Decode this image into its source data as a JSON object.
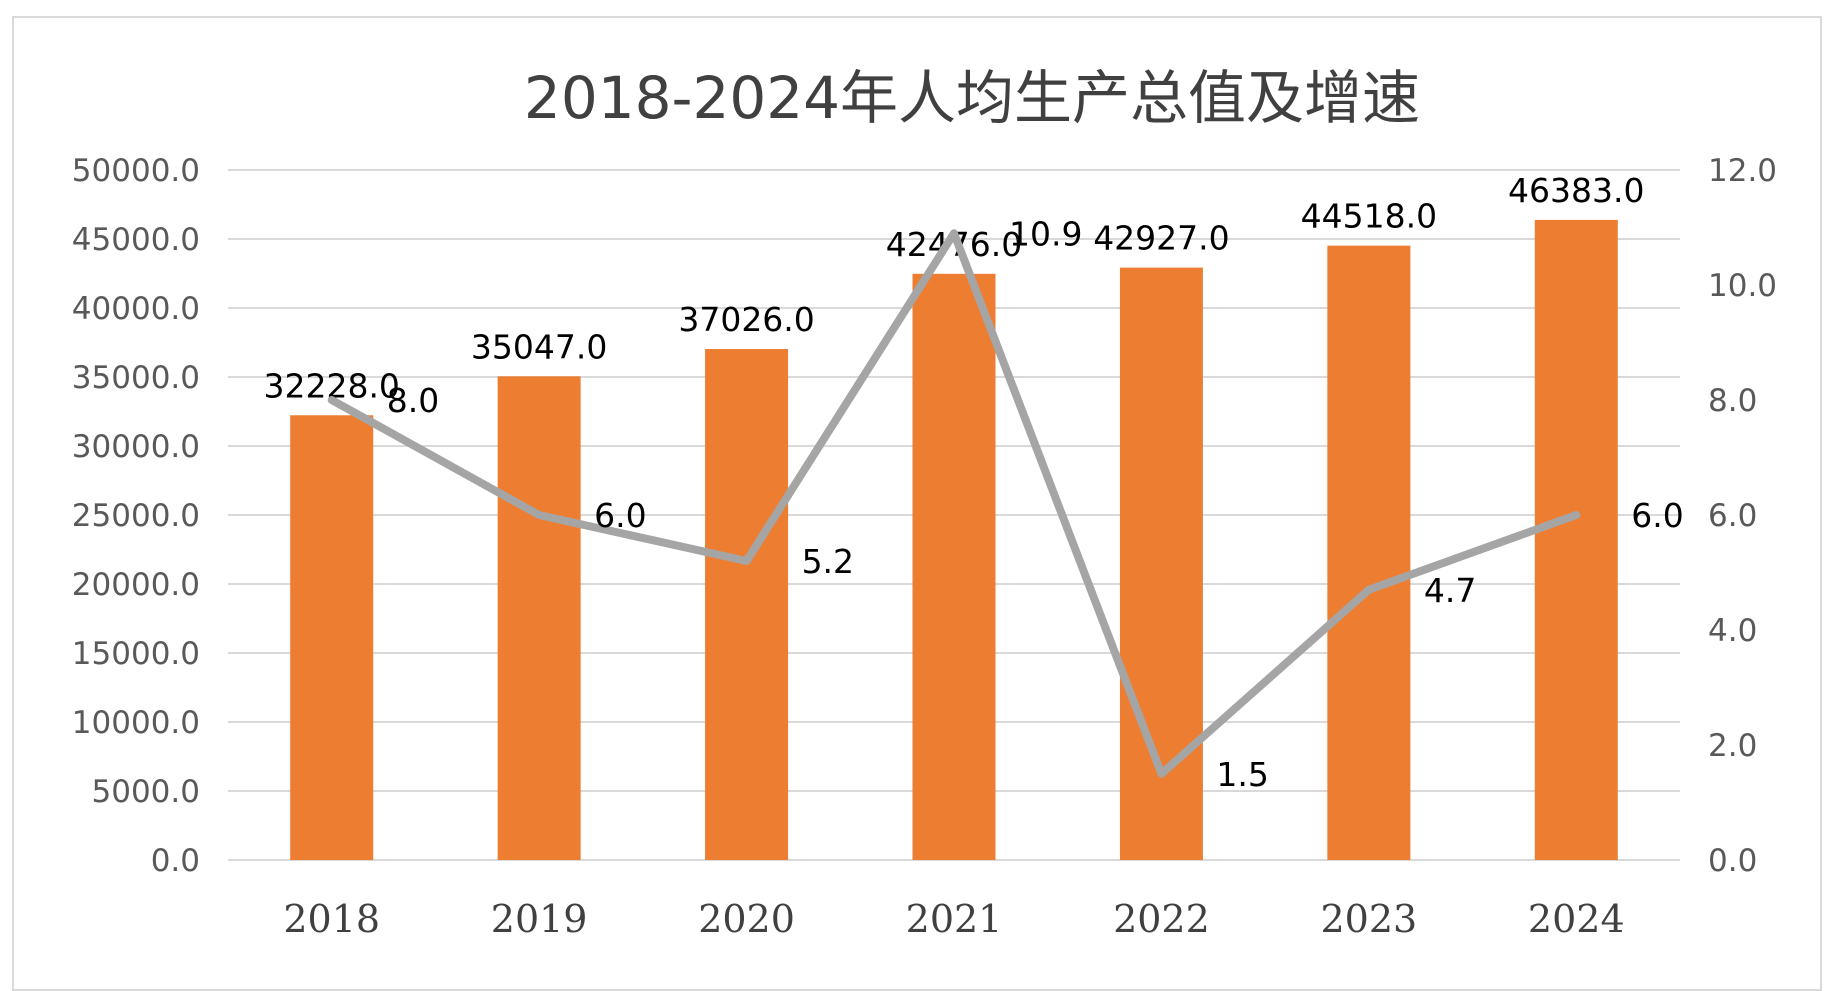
{
  "chart_data": {
    "type": "bar",
    "title": "2018-2024年人均生产总值及增速",
    "categories": [
      "2018",
      "2019",
      "2020",
      "2021",
      "2022",
      "2023",
      "2024"
    ],
    "series": [
      {
        "type": "bar",
        "axis": "left",
        "values": [
          32228.0,
          35047.0,
          37026.0,
          42476.0,
          42927.0,
          44518.0,
          46383.0
        ],
        "labels": [
          "32228.0",
          "35047.0",
          "37026.0",
          "42476.0",
          "42927.0",
          "44518.0",
          "46383.0"
        ],
        "color": "#ED7D31"
      },
      {
        "type": "line",
        "axis": "right",
        "values": [
          8.0,
          6.0,
          5.2,
          10.9,
          1.5,
          4.7,
          6.0
        ],
        "labels": [
          "8.0",
          "6.0",
          "5.2",
          "10.9",
          "1.5",
          "4.7",
          "6.0"
        ],
        "color": "#A5A5A5"
      }
    ],
    "y_left": {
      "min": 0,
      "max": 50000,
      "step": 5000,
      "ticks": [
        "0.0",
        "5000.0",
        "10000.0",
        "15000.0",
        "20000.0",
        "25000.0",
        "30000.0",
        "35000.0",
        "40000.0",
        "45000.0",
        "50000.0"
      ]
    },
    "y_right": {
      "min": 0,
      "max": 12,
      "step": 2,
      "ticks": [
        "0.0",
        "2.0",
        "4.0",
        "6.0",
        "8.0",
        "10.0",
        "12.0"
      ]
    },
    "grid": true,
    "legend": "none",
    "gridline_color": "#d9d9d9"
  }
}
